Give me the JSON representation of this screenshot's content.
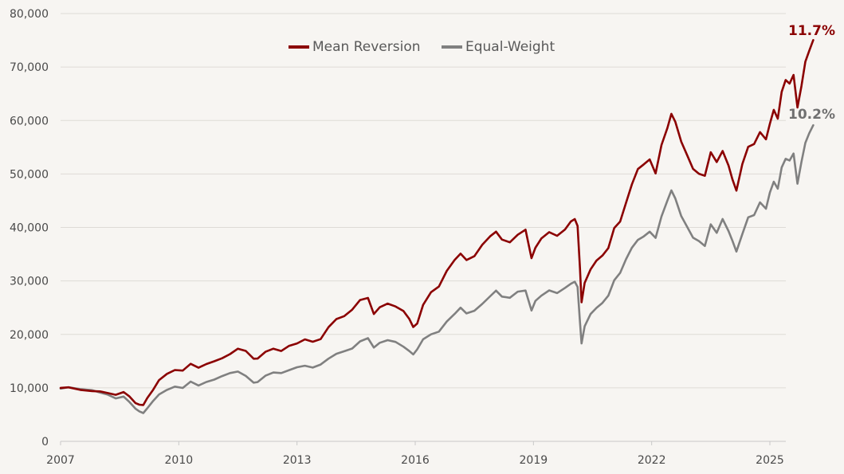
{
  "chart_data": {
    "type": "line",
    "title": "",
    "xlabel": "",
    "ylabel": "",
    "xlim": [
      2007,
      2025.4
    ],
    "ylim": [
      0,
      80000
    ],
    "grid": "horizontal",
    "legend_position": "top-center",
    "x_ticks": [
      2007,
      2010,
      2013,
      2016,
      2019,
      2022,
      2025
    ],
    "x_tick_labels": [
      "2007",
      "2010",
      "2013",
      "2016",
      "2019",
      "2022",
      "2025"
    ],
    "y_ticks": [
      0,
      10000,
      20000,
      30000,
      40000,
      50000,
      60000,
      70000,
      80000
    ],
    "y_tick_labels": [
      "0",
      "10,000",
      "20,000",
      "30,000",
      "40,000",
      "50,000",
      "60,000",
      "70,000",
      "80,000"
    ],
    "series": [
      {
        "name": "Mean Reversion",
        "color": "#8b0000",
        "end_label": "11.7%",
        "points": [
          [
            2007.0,
            10000
          ],
          [
            2007.2,
            10300
          ],
          [
            2007.5,
            9900
          ],
          [
            2007.8,
            9600
          ],
          [
            2008.0,
            9400
          ],
          [
            2008.2,
            9000
          ],
          [
            2008.4,
            8700
          ],
          [
            2008.6,
            9300
          ],
          [
            2008.75,
            8500
          ],
          [
            2008.9,
            7200
          ],
          [
            2009.0,
            6700
          ],
          [
            2009.1,
            6500
          ],
          [
            2009.2,
            7800
          ],
          [
            2009.35,
            9500
          ],
          [
            2009.5,
            11500
          ],
          [
            2009.7,
            12800
          ],
          [
            2009.9,
            13500
          ],
          [
            2010.1,
            13300
          ],
          [
            2010.3,
            14500
          ],
          [
            2010.5,
            13800
          ],
          [
            2010.7,
            14600
          ],
          [
            2010.9,
            15200
          ],
          [
            2011.1,
            15700
          ],
          [
            2011.3,
            16300
          ],
          [
            2011.5,
            17100
          ],
          [
            2011.7,
            16600
          ],
          [
            2011.9,
            15200
          ],
          [
            2012.0,
            15400
          ],
          [
            2012.2,
            16800
          ],
          [
            2012.4,
            17400
          ],
          [
            2012.6,
            16900
          ],
          [
            2012.8,
            17800
          ],
          [
            2013.0,
            18300
          ],
          [
            2013.2,
            19200
          ],
          [
            2013.4,
            18900
          ],
          [
            2013.6,
            19400
          ],
          [
            2013.8,
            21500
          ],
          [
            2014.0,
            22800
          ],
          [
            2014.2,
            23200
          ],
          [
            2014.4,
            24400
          ],
          [
            2014.6,
            26300
          ],
          [
            2014.8,
            26800
          ],
          [
            2014.95,
            23800
          ],
          [
            2015.1,
            25000
          ],
          [
            2015.3,
            25600
          ],
          [
            2015.5,
            25100
          ],
          [
            2015.7,
            24400
          ],
          [
            2015.85,
            23100
          ],
          [
            2015.95,
            21700
          ],
          [
            2016.05,
            22300
          ],
          [
            2016.2,
            25600
          ],
          [
            2016.4,
            27800
          ],
          [
            2016.6,
            28800
          ],
          [
            2016.8,
            31800
          ],
          [
            2017.0,
            33900
          ],
          [
            2017.15,
            35100
          ],
          [
            2017.3,
            33800
          ],
          [
            2017.5,
            34400
          ],
          [
            2017.7,
            36500
          ],
          [
            2017.9,
            38200
          ],
          [
            2018.05,
            39300
          ],
          [
            2018.2,
            38000
          ],
          [
            2018.4,
            37500
          ],
          [
            2018.6,
            38800
          ],
          [
            2018.8,
            39600
          ],
          [
            2018.95,
            34200
          ],
          [
            2019.05,
            36200
          ],
          [
            2019.2,
            38000
          ],
          [
            2019.4,
            39200
          ],
          [
            2019.6,
            38400
          ],
          [
            2019.8,
            39400
          ],
          [
            2019.95,
            40800
          ],
          [
            2020.05,
            41300
          ],
          [
            2020.12,
            40200
          ],
          [
            2020.18,
            32500
          ],
          [
            2020.22,
            26200
          ],
          [
            2020.3,
            29800
          ],
          [
            2020.45,
            32200
          ],
          [
            2020.6,
            33800
          ],
          [
            2020.75,
            34800
          ],
          [
            2020.9,
            36300
          ],
          [
            2021.05,
            40100
          ],
          [
            2021.2,
            41200
          ],
          [
            2021.35,
            44500
          ],
          [
            2021.5,
            47800
          ],
          [
            2021.65,
            50600
          ],
          [
            2021.8,
            51600
          ],
          [
            2021.95,
            52700
          ],
          [
            2022.1,
            50200
          ],
          [
            2022.25,
            55500
          ],
          [
            2022.4,
            58600
          ],
          [
            2022.5,
            61200
          ],
          [
            2022.6,
            59800
          ],
          [
            2022.75,
            56200
          ],
          [
            2022.9,
            53800
          ],
          [
            2023.05,
            51200
          ],
          [
            2023.2,
            50100
          ],
          [
            2023.35,
            49500
          ],
          [
            2023.5,
            53800
          ],
          [
            2023.65,
            52000
          ],
          [
            2023.8,
            54200
          ],
          [
            2023.95,
            51600
          ],
          [
            2024.05,
            49000
          ],
          [
            2024.15,
            46800
          ],
          [
            2024.3,
            51700
          ],
          [
            2024.45,
            55000
          ],
          [
            2024.6,
            55700
          ],
          [
            2024.75,
            58100
          ],
          [
            2024.9,
            56800
          ],
          [
            2025.0,
            59600
          ],
          [
            2025.1,
            62000
          ],
          [
            2025.2,
            60200
          ],
          [
            2025.3,
            65200
          ],
          [
            2025.4,
            67500
          ],
          [
            2025.5,
            66900
          ],
          [
            2025.6,
            68500
          ],
          [
            2025.7,
            62300
          ],
          [
            2025.8,
            66200
          ],
          [
            2025.9,
            70800
          ],
          [
            2026.0,
            73000
          ],
          [
            2026.1,
            75200
          ]
        ]
      },
      {
        "name": "Equal-Weight",
        "color": "#808080",
        "end_label": "10.2%",
        "points": [
          [
            2007.0,
            10000
          ],
          [
            2007.2,
            10200
          ],
          [
            2007.5,
            9700
          ],
          [
            2007.8,
            9300
          ],
          [
            2008.0,
            8800
          ],
          [
            2008.2,
            8500
          ],
          [
            2008.4,
            8000
          ],
          [
            2008.6,
            8500
          ],
          [
            2008.75,
            7500
          ],
          [
            2008.9,
            6200
          ],
          [
            2009.0,
            5600
          ],
          [
            2009.1,
            5300
          ],
          [
            2009.2,
            6300
          ],
          [
            2009.35,
            7800
          ],
          [
            2009.5,
            9000
          ],
          [
            2009.7,
            9700
          ],
          [
            2009.9,
            10100
          ],
          [
            2010.1,
            9700
          ],
          [
            2010.3,
            10900
          ],
          [
            2010.5,
            10300
          ],
          [
            2010.7,
            11100
          ],
          [
            2010.9,
            11600
          ],
          [
            2011.1,
            12200
          ],
          [
            2011.3,
            12700
          ],
          [
            2011.5,
            13000
          ],
          [
            2011.7,
            12300
          ],
          [
            2011.9,
            11200
          ],
          [
            2012.0,
            11400
          ],
          [
            2012.2,
            12500
          ],
          [
            2012.4,
            12900
          ],
          [
            2012.6,
            12600
          ],
          [
            2012.8,
            13100
          ],
          [
            2013.0,
            13700
          ],
          [
            2013.2,
            14100
          ],
          [
            2013.4,
            13800
          ],
          [
            2013.6,
            14300
          ],
          [
            2013.8,
            15300
          ],
          [
            2014.0,
            16200
          ],
          [
            2014.2,
            16800
          ],
          [
            2014.4,
            17500
          ],
          [
            2014.6,
            19000
          ],
          [
            2014.8,
            19600
          ],
          [
            2014.95,
            17700
          ],
          [
            2015.1,
            18400
          ],
          [
            2015.3,
            18800
          ],
          [
            2015.5,
            18500
          ],
          [
            2015.7,
            17700
          ],
          [
            2015.85,
            16900
          ],
          [
            2015.95,
            16200
          ],
          [
            2016.05,
            17000
          ],
          [
            2016.2,
            18800
          ],
          [
            2016.4,
            19800
          ],
          [
            2016.6,
            20500
          ],
          [
            2016.8,
            22600
          ],
          [
            2017.0,
            24100
          ],
          [
            2017.15,
            25200
          ],
          [
            2017.3,
            24000
          ],
          [
            2017.5,
            24400
          ],
          [
            2017.7,
            25700
          ],
          [
            2017.9,
            27200
          ],
          [
            2018.05,
            28300
          ],
          [
            2018.2,
            27100
          ],
          [
            2018.4,
            26700
          ],
          [
            2018.6,
            27700
          ],
          [
            2018.8,
            27900
          ],
          [
            2018.95,
            24300
          ],
          [
            2019.05,
            26300
          ],
          [
            2019.2,
            27400
          ],
          [
            2019.4,
            28400
          ],
          [
            2019.6,
            27800
          ],
          [
            2019.8,
            28700
          ],
          [
            2019.95,
            29500
          ],
          [
            2020.05,
            30000
          ],
          [
            2020.12,
            29100
          ],
          [
            2020.18,
            22500
          ],
          [
            2020.22,
            18300
          ],
          [
            2020.3,
            21300
          ],
          [
            2020.45,
            23500
          ],
          [
            2020.6,
            24700
          ],
          [
            2020.75,
            25800
          ],
          [
            2020.9,
            27300
          ],
          [
            2021.05,
            30200
          ],
          [
            2021.2,
            31500
          ],
          [
            2021.35,
            34000
          ],
          [
            2021.5,
            36200
          ],
          [
            2021.65,
            37800
          ],
          [
            2021.8,
            38600
          ],
          [
            2021.95,
            39500
          ],
          [
            2022.1,
            38200
          ],
          [
            2022.25,
            42000
          ],
          [
            2022.4,
            44800
          ],
          [
            2022.5,
            46700
          ],
          [
            2022.6,
            45300
          ],
          [
            2022.75,
            42100
          ],
          [
            2022.9,
            40100
          ],
          [
            2023.05,
            38000
          ],
          [
            2023.2,
            37300
          ],
          [
            2023.35,
            36400
          ],
          [
            2023.5,
            40600
          ],
          [
            2023.65,
            39200
          ],
          [
            2023.8,
            41900
          ],
          [
            2023.95,
            39600
          ],
          [
            2024.05,
            37600
          ],
          [
            2024.15,
            35400
          ],
          [
            2024.3,
            38600
          ],
          [
            2024.45,
            41800
          ],
          [
            2024.6,
            42300
          ],
          [
            2024.75,
            44700
          ],
          [
            2024.9,
            43400
          ],
          [
            2025.0,
            46300
          ],
          [
            2025.1,
            48300
          ],
          [
            2025.2,
            47100
          ],
          [
            2025.3,
            51300
          ],
          [
            2025.4,
            53100
          ],
          [
            2025.5,
            52800
          ],
          [
            2025.6,
            54000
          ],
          [
            2025.7,
            48200
          ],
          [
            2025.8,
            52200
          ],
          [
            2025.9,
            55800
          ],
          [
            2026.0,
            57700
          ],
          [
            2026.1,
            59200
          ]
        ]
      }
    ]
  }
}
